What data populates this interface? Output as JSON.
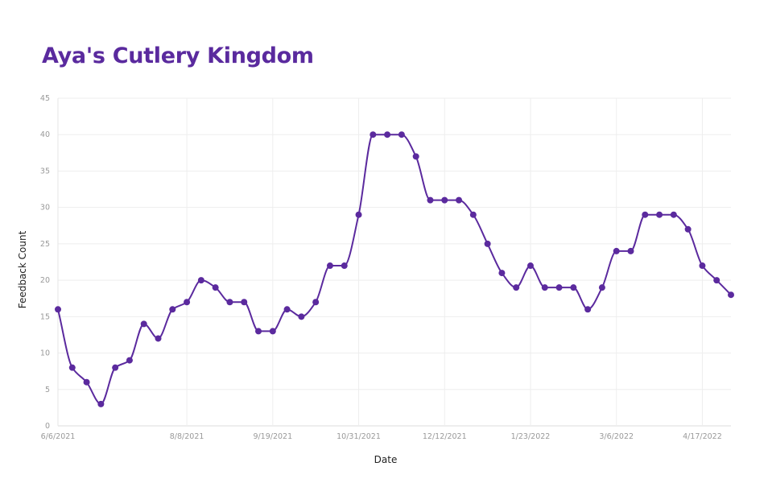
{
  "chart_data": {
    "type": "line",
    "title": "Aya's Cutlery Kingdom",
    "xlabel": "Date",
    "ylabel": "Feedback Count",
    "ylim": [
      0,
      45
    ],
    "yticks": [
      0,
      5,
      10,
      15,
      20,
      25,
      30,
      35,
      40,
      45
    ],
    "x_start": "6/6/2021",
    "x_interval_days": 7,
    "xticks": [
      "6/6/2021",
      "8/8/2021",
      "9/19/2021",
      "10/31/2021",
      "12/12/2021",
      "1/23/2022",
      "3/6/2022",
      "4/17/2022"
    ],
    "grid": true,
    "color": "#5b2a9e",
    "series": [
      {
        "values": [
          16,
          8,
          6,
          3,
          8,
          9,
          14,
          12,
          16,
          17,
          20,
          19,
          17,
          17,
          13,
          13,
          16,
          15,
          17,
          22,
          22,
          29,
          40,
          40,
          40,
          37,
          31,
          31,
          31,
          29,
          25,
          21,
          19,
          22,
          19,
          19,
          19,
          16,
          19,
          24,
          24,
          29,
          29,
          29,
          27,
          22,
          20,
          18
        ]
      }
    ]
  }
}
